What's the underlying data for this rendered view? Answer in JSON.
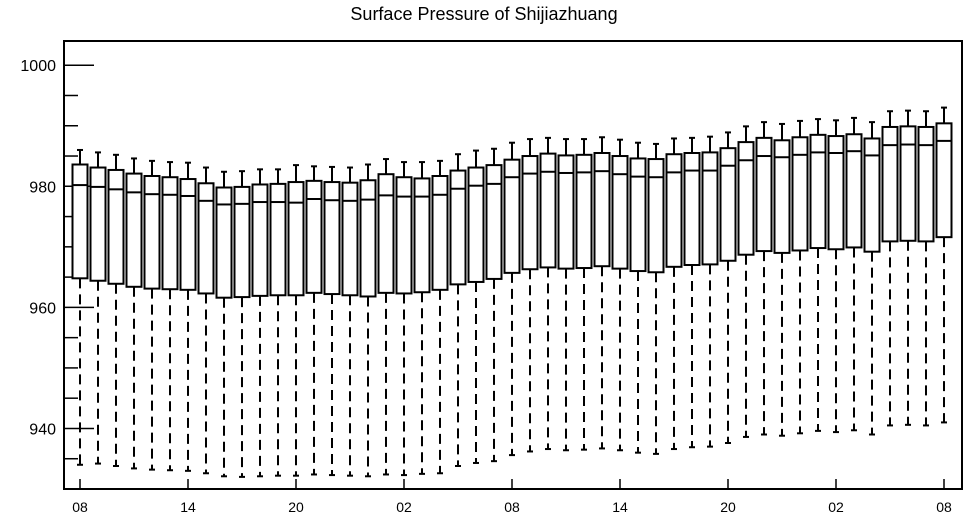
{
  "chart_data": {
    "type": "box",
    "title": "Surface Pressure of Shijiazhuang",
    "xlabel": "",
    "ylabel": "",
    "ylim": [
      930,
      1004
    ],
    "y_ticks": [
      940,
      960,
      980,
      1000
    ],
    "x_tick_labels": [
      "08",
      "14",
      "20",
      "02",
      "08",
      "14",
      "20",
      "02",
      "08"
    ],
    "series": [
      {
        "category": "08",
        "whisker_low": 934.0,
        "q1": 964.8,
        "median": 980.2,
        "q3": 983.6,
        "whisker_high": 986.0
      },
      {
        "category": "",
        "whisker_low": 934.2,
        "q1": 964.4,
        "median": 979.9,
        "q3": 983.1,
        "whisker_high": 985.6
      },
      {
        "category": "",
        "whisker_low": 933.8,
        "q1": 963.9,
        "median": 979.5,
        "q3": 982.7,
        "whisker_high": 985.2
      },
      {
        "category": "",
        "whisker_low": 933.4,
        "q1": 963.4,
        "median": 979.0,
        "q3": 982.1,
        "whisker_high": 984.6
      },
      {
        "category": "",
        "whisker_low": 933.2,
        "q1": 963.1,
        "median": 978.7,
        "q3": 981.7,
        "whisker_high": 984.2
      },
      {
        "category": "",
        "whisker_low": 933.1,
        "q1": 963.0,
        "median": 978.6,
        "q3": 981.5,
        "whisker_high": 984.0
      },
      {
        "category": "14",
        "whisker_low": 933.0,
        "q1": 962.9,
        "median": 978.4,
        "q3": 981.2,
        "whisker_high": 983.9
      },
      {
        "category": "",
        "whisker_low": 932.6,
        "q1": 962.3,
        "median": 977.6,
        "q3": 980.5,
        "whisker_high": 983.1
      },
      {
        "category": "",
        "whisker_low": 932.1,
        "q1": 961.6,
        "median": 977.0,
        "q3": 979.8,
        "whisker_high": 982.4
      },
      {
        "category": "",
        "whisker_low": 932.0,
        "q1": 961.7,
        "median": 977.1,
        "q3": 979.9,
        "whisker_high": 982.5
      },
      {
        "category": "",
        "whisker_low": 932.1,
        "q1": 961.9,
        "median": 977.4,
        "q3": 980.3,
        "whisker_high": 982.8
      },
      {
        "category": "",
        "whisker_low": 932.2,
        "q1": 962.0,
        "median": 977.4,
        "q3": 980.4,
        "whisker_high": 982.8
      },
      {
        "category": "20",
        "whisker_low": 932.2,
        "q1": 962.0,
        "median": 977.3,
        "q3": 980.7,
        "whisker_high": 983.5
      },
      {
        "category": "",
        "whisker_low": 932.4,
        "q1": 962.4,
        "median": 977.9,
        "q3": 980.9,
        "whisker_high": 983.3
      },
      {
        "category": "",
        "whisker_low": 932.3,
        "q1": 962.2,
        "median": 977.7,
        "q3": 980.7,
        "whisker_high": 983.2
      },
      {
        "category": "",
        "whisker_low": 932.2,
        "q1": 962.0,
        "median": 977.6,
        "q3": 980.6,
        "whisker_high": 983.1
      },
      {
        "category": "",
        "whisker_low": 932.1,
        "q1": 961.8,
        "median": 977.8,
        "q3": 981.0,
        "whisker_high": 983.6
      },
      {
        "category": "",
        "whisker_low": 932.4,
        "q1": 962.4,
        "median": 978.5,
        "q3": 982.0,
        "whisker_high": 984.5
      },
      {
        "category": "02",
        "whisker_low": 932.3,
        "q1": 962.3,
        "median": 978.3,
        "q3": 981.5,
        "whisker_high": 984.0
      },
      {
        "category": "",
        "whisker_low": 932.5,
        "q1": 962.5,
        "median": 978.3,
        "q3": 981.3,
        "whisker_high": 984.0
      },
      {
        "category": "",
        "whisker_low": 932.6,
        "q1": 962.9,
        "median": 978.6,
        "q3": 981.7,
        "whisker_high": 984.2
      },
      {
        "category": "",
        "whisker_low": 933.8,
        "q1": 963.8,
        "median": 979.6,
        "q3": 982.6,
        "whisker_high": 985.3
      },
      {
        "category": "",
        "whisker_low": 934.3,
        "q1": 964.2,
        "median": 980.1,
        "q3": 983.1,
        "whisker_high": 985.9
      },
      {
        "category": "",
        "whisker_low": 934.6,
        "q1": 964.7,
        "median": 980.4,
        "q3": 983.5,
        "whisker_high": 986.2
      },
      {
        "category": "08",
        "whisker_low": 935.6,
        "q1": 965.7,
        "median": 981.5,
        "q3": 984.4,
        "whisker_high": 987.2
      },
      {
        "category": "",
        "whisker_low": 936.2,
        "q1": 966.3,
        "median": 982.1,
        "q3": 985.0,
        "whisker_high": 987.8
      },
      {
        "category": "",
        "whisker_low": 936.6,
        "q1": 966.6,
        "median": 982.4,
        "q3": 985.4,
        "whisker_high": 988.0
      },
      {
        "category": "",
        "whisker_low": 936.4,
        "q1": 966.4,
        "median": 982.2,
        "q3": 985.1,
        "whisker_high": 987.8
      },
      {
        "category": "",
        "whisker_low": 936.5,
        "q1": 966.5,
        "median": 982.3,
        "q3": 985.2,
        "whisker_high": 987.8
      },
      {
        "category": "",
        "whisker_low": 936.7,
        "q1": 966.8,
        "median": 982.5,
        "q3": 985.5,
        "whisker_high": 988.1
      },
      {
        "category": "14",
        "whisker_low": 936.4,
        "q1": 966.4,
        "median": 982.0,
        "q3": 985.0,
        "whisker_high": 987.7
      },
      {
        "category": "",
        "whisker_low": 936.0,
        "q1": 966.0,
        "median": 981.6,
        "q3": 984.6,
        "whisker_high": 987.2
      },
      {
        "category": "",
        "whisker_low": 935.8,
        "q1": 965.8,
        "median": 981.5,
        "q3": 984.5,
        "whisker_high": 987.0
      },
      {
        "category": "",
        "whisker_low": 936.6,
        "q1": 966.7,
        "median": 982.3,
        "q3": 985.3,
        "whisker_high": 987.9
      },
      {
        "category": "",
        "whisker_low": 936.9,
        "q1": 967.0,
        "median": 982.6,
        "q3": 985.5,
        "whisker_high": 988.0
      },
      {
        "category": "",
        "whisker_low": 937.0,
        "q1": 967.1,
        "median": 982.6,
        "q3": 985.6,
        "whisker_high": 988.2
      },
      {
        "category": "20",
        "whisker_low": 937.6,
        "q1": 967.7,
        "median": 983.4,
        "q3": 986.3,
        "whisker_high": 988.9
      },
      {
        "category": "",
        "whisker_low": 938.6,
        "q1": 968.7,
        "median": 984.3,
        "q3": 987.3,
        "whisker_high": 989.9
      },
      {
        "category": "",
        "whisker_low": 939.0,
        "q1": 969.3,
        "median": 985.0,
        "q3": 988.0,
        "whisker_high": 990.6
      },
      {
        "category": "",
        "whisker_low": 938.8,
        "q1": 969.0,
        "median": 984.8,
        "q3": 987.6,
        "whisker_high": 990.3
      },
      {
        "category": "",
        "whisker_low": 939.2,
        "q1": 969.4,
        "median": 985.2,
        "q3": 988.1,
        "whisker_high": 990.8
      },
      {
        "category": "",
        "whisker_low": 939.6,
        "q1": 969.8,
        "median": 985.6,
        "q3": 988.5,
        "whisker_high": 991.1
      },
      {
        "category": "02",
        "whisker_low": 939.4,
        "q1": 969.6,
        "median": 985.5,
        "q3": 988.3,
        "whisker_high": 990.9
      },
      {
        "category": "",
        "whisker_low": 939.7,
        "q1": 969.9,
        "median": 985.8,
        "q3": 988.6,
        "whisker_high": 991.3
      },
      {
        "category": "",
        "whisker_low": 939.0,
        "q1": 969.2,
        "median": 985.1,
        "q3": 987.9,
        "whisker_high": 990.6
      },
      {
        "category": "",
        "whisker_low": 940.5,
        "q1": 970.9,
        "median": 986.8,
        "q3": 989.8,
        "whisker_high": 992.4
      },
      {
        "category": "",
        "whisker_low": 940.6,
        "q1": 971.0,
        "median": 986.9,
        "q3": 989.9,
        "whisker_high": 992.5
      },
      {
        "category": "",
        "whisker_low": 940.5,
        "q1": 970.9,
        "median": 986.8,
        "q3": 989.8,
        "whisker_high": 992.4
      },
      {
        "category": "08",
        "whisker_low": 941.0,
        "q1": 971.6,
        "median": 987.5,
        "q3": 990.4,
        "whisker_high": 993.0
      }
    ],
    "grid": false,
    "legend": "none",
    "colors": {
      "box": "#000000",
      "background": "#ffffff"
    }
  }
}
